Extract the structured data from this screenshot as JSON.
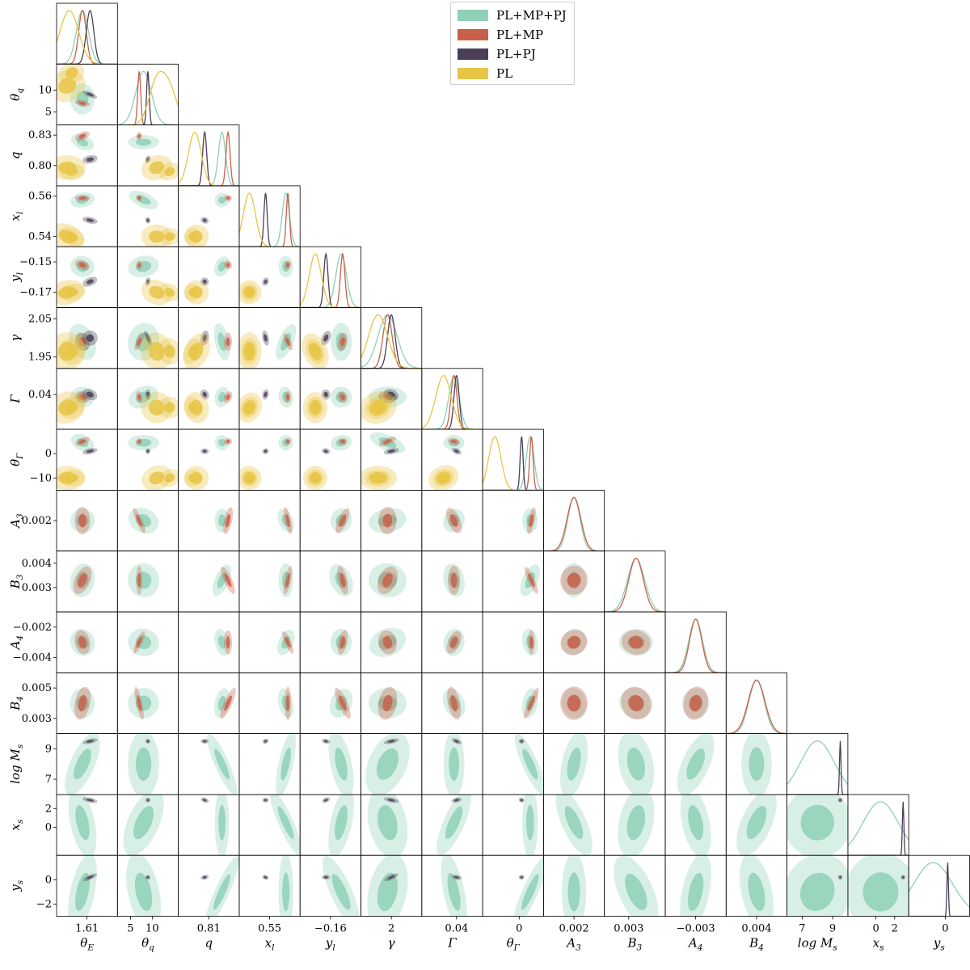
{
  "chart_data": {
    "type": "corner",
    "title": "",
    "legend": {
      "placement": "top-right",
      "entries": [
        {
          "name": "PL+MP+PJ",
          "color": "#8fd0b6"
        },
        {
          "name": "PL+MP",
          "color": "#c9604a"
        },
        {
          "name": "PL+PJ",
          "color": "#4a3f55"
        },
        {
          "name": "PL",
          "color": "#e8c547"
        }
      ]
    },
    "parameters": [
      {
        "name": "theta_E",
        "xlabel": "θ_E",
        "ylabel": "",
        "range": [
          1.59,
          1.63
        ],
        "xticks": [
          "1.61"
        ],
        "yticks": []
      },
      {
        "name": "theta_q",
        "xlabel": "θ_q",
        "ylabel": "θ_q",
        "range": [
          2,
          16
        ],
        "xticks": [
          "5",
          "10"
        ],
        "yticks": [
          "5",
          "10"
        ]
      },
      {
        "name": "q",
        "xlabel": "q",
        "ylabel": "q",
        "range": [
          0.78,
          0.84
        ],
        "xticks": [
          "0.81"
        ],
        "yticks": [
          "0.80",
          "0.83"
        ]
      },
      {
        "name": "x_l",
        "xlabel": "x_l",
        "ylabel": "x_l",
        "range": [
          0.535,
          0.565
        ],
        "xticks": [
          "0.55"
        ],
        "yticks": [
          "0.54",
          "0.56"
        ]
      },
      {
        "name": "y_l",
        "xlabel": "y_l",
        "ylabel": "y_l",
        "range": [
          -0.18,
          -0.14
        ],
        "xticks": [
          "−0.16"
        ],
        "yticks": [
          "−0.17",
          "−0.15"
        ]
      },
      {
        "name": "gamma",
        "xlabel": "γ",
        "ylabel": "γ",
        "range": [
          1.92,
          2.08
        ],
        "xticks": [
          "2"
        ],
        "yticks": [
          "1.95",
          "2.05"
        ]
      },
      {
        "name": "Gamma",
        "xlabel": "Γ",
        "ylabel": "Γ",
        "range": [
          0.0,
          0.07
        ],
        "xticks": [
          "0.04"
        ],
        "yticks": [
          "0.04"
        ]
      },
      {
        "name": "theta_Gamma",
        "xlabel": "θ_Γ",
        "ylabel": "θ_Γ",
        "range": [
          -15,
          10
        ],
        "xticks": [
          "0"
        ],
        "yticks": [
          "−10",
          "0"
        ]
      },
      {
        "name": "A_3",
        "xlabel": "A_3",
        "ylabel": "A_3",
        "range": [
          0.0,
          0.004
        ],
        "xticks": [
          "0.002"
        ],
        "yticks": [
          "0.002"
        ]
      },
      {
        "name": "B_3",
        "xlabel": "B_3",
        "ylabel": "B_3",
        "range": [
          0.002,
          0.0045
        ],
        "xticks": [
          "0.003"
        ],
        "yticks": [
          "0.003",
          "0.004"
        ]
      },
      {
        "name": "A_4",
        "xlabel": "A_4",
        "ylabel": "A_4",
        "range": [
          -0.005,
          -0.001
        ],
        "xticks": [
          "−0.003"
        ],
        "yticks": [
          "−0.004",
          "−0.002"
        ]
      },
      {
        "name": "B_4",
        "xlabel": "B_4",
        "ylabel": "B_4",
        "range": [
          0.002,
          0.006
        ],
        "xticks": [
          "0.004"
        ],
        "yticks": [
          "0.003",
          "0.005"
        ]
      },
      {
        "name": "log_M_s",
        "xlabel": "log M_s",
        "ylabel": "log M_s",
        "range": [
          6,
          10
        ],
        "xticks": [
          "7",
          "9"
        ],
        "yticks": [
          "7",
          "9"
        ]
      },
      {
        "name": "x_s",
        "xlabel": "x_s",
        "ylabel": "x_s",
        "range": [
          -3,
          3.5
        ],
        "xticks": [
          "0",
          "2"
        ],
        "yticks": [
          "0",
          "2"
        ]
      },
      {
        "name": "y_s",
        "xlabel": "y_s",
        "ylabel": "y_s",
        "range": [
          -3,
          2
        ],
        "xticks": [
          "0"
        ],
        "yticks": [
          "−2",
          "0"
        ]
      }
    ],
    "fits": [
      {
        "name": "PL+MP+PJ",
        "color": "#8fd0b6",
        "varies": [
          "theta_E",
          "theta_q",
          "q",
          "x_l",
          "y_l",
          "gamma",
          "Gamma",
          "theta_Gamma",
          "A_3",
          "B_3",
          "A_4",
          "B_4",
          "log_M_s",
          "x_s",
          "y_s"
        ],
        "mean": {
          "theta_E": 1.607,
          "theta_q": 8.0,
          "q": 0.823,
          "x_l": 0.558,
          "y_l": -0.153,
          "gamma": 1.99,
          "Gamma": 0.037,
          "theta_Gamma": 4.5,
          "A_3": 0.002,
          "B_3": 0.0033,
          "A_4": -0.003,
          "B_4": 0.004,
          "log_M_s": 8.0,
          "x_s": 0.5,
          "y_s": -1.0
        },
        "sigma": {
          "theta_E": 0.004,
          "theta_q": 1.8,
          "q": 0.0035,
          "x_l": 0.0018,
          "y_l": 0.0035,
          "gamma": 0.025,
          "Gamma": 0.006,
          "theta_Gamma": 1.6,
          "A_3": 0.0004,
          "B_3": 0.00035,
          "A_4": 0.00045,
          "B_4": 0.0005,
          "log_M_s": 1.1,
          "x_s": 1.9,
          "y_s": 1.6
        }
      },
      {
        "name": "PL+MP",
        "color": "#c9604a",
        "varies": [
          "theta_E",
          "theta_q",
          "q",
          "x_l",
          "y_l",
          "gamma",
          "Gamma",
          "theta_Gamma",
          "A_3",
          "B_3",
          "A_4",
          "B_4"
        ],
        "mean": {
          "theta_E": 1.607,
          "theta_q": 7.0,
          "q": 0.829,
          "x_l": 0.559,
          "y_l": -0.152,
          "gamma": 1.99,
          "Gamma": 0.037,
          "theta_Gamma": 5.0,
          "A_3": 0.002,
          "B_3": 0.0033,
          "A_4": -0.003,
          "B_4": 0.004
        },
        "sigma": {
          "theta_E": 0.0025,
          "theta_q": 0.35,
          "q": 0.002,
          "x_l": 0.0008,
          "y_l": 0.0015,
          "gamma": 0.012,
          "Gamma": 0.0035,
          "theta_Gamma": 0.7,
          "A_3": 0.00045,
          "B_3": 0.0003,
          "A_4": 0.0004,
          "B_4": 0.00055
        }
      },
      {
        "name": "PL+PJ",
        "color": "#4a3f55",
        "varies": [
          "theta_E",
          "theta_q",
          "q",
          "x_l",
          "y_l",
          "gamma",
          "Gamma",
          "theta_Gamma",
          "log_M_s",
          "x_s",
          "y_s"
        ],
        "mean": {
          "theta_E": 1.612,
          "theta_q": 9.0,
          "q": 0.806,
          "x_l": 0.548,
          "y_l": -0.163,
          "gamma": 2.0,
          "Gamma": 0.04,
          "theta_Gamma": 1.0,
          "log_M_s": 9.5,
          "x_s": 2.9,
          "y_s": 0.2
        },
        "sigma": {
          "theta_E": 0.0025,
          "theta_q": 0.3,
          "q": 0.002,
          "x_l": 0.0008,
          "y_l": 0.0014,
          "gamma": 0.01,
          "Gamma": 0.003,
          "theta_Gamma": 0.6,
          "log_M_s": 0.05,
          "x_s": 0.08,
          "y_s": 0.06
        }
      },
      {
        "name": "PL",
        "color": "#e8c547",
        "varies": [
          "theta_E",
          "theta_q",
          "q",
          "x_l",
          "y_l",
          "gamma",
          "Gamma",
          "theta_Gamma"
        ],
        "mean": {
          "theta_E": 1.597,
          "theta_q": 11.0,
          "q": 0.798,
          "x_l": 0.54,
          "y_l": -0.17,
          "gamma": 1.965,
          "Gamma": 0.025,
          "theta_Gamma": -10.0,
          "theta_E_alt": 1.6,
          "theta_q_alt": 14.0,
          "q_alt": 0.794
        },
        "sigma": {
          "theta_E": 0.006,
          "theta_q": 1.8,
          "q": 0.006,
          "x_l": 0.003,
          "y_l": 0.004,
          "gamma": 0.025,
          "Gamma": 0.009,
          "theta_Gamma": 2.5
        }
      }
    ]
  }
}
